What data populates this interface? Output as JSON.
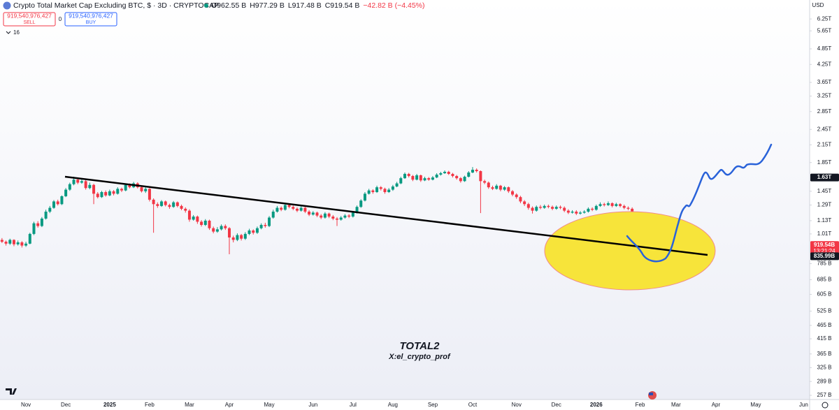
{
  "header": {
    "title": "Crypto Total Market Cap Excluding BTC, $ · 3D · CRYPTOCAP",
    "ohlc": [
      "O962.55 B",
      "H977.29 B",
      "L917.48 B",
      "C919.54 B",
      "−42.82 B (−4.45%)"
    ],
    "sell_price": "919,540,976,427",
    "sell": "SELL",
    "spread": "0",
    "buy_price": "919,540,976,427",
    "buy": "BUY",
    "indicators": "16",
    "currency": "USD"
  },
  "annotations": {
    "title": "TOTAL2",
    "author": "X:el_crypto_prof"
  },
  "chart_data": {
    "type": "candlestick",
    "log_scale": true,
    "grid": false,
    "up_color": "#089981",
    "down_color": "#f23645",
    "ylim": [
      248,
      7340
    ],
    "yticks": [
      {
        "value": 6250,
        "label": "6.25T"
      },
      {
        "value": 5650,
        "label": "5.65T"
      },
      {
        "value": 4850,
        "label": "4.85T"
      },
      {
        "value": 4250,
        "label": "4.25T"
      },
      {
        "value": 3650,
        "label": "3.65T"
      },
      {
        "value": 3250,
        "label": "3.25T"
      },
      {
        "value": 2850,
        "label": "2.85T"
      },
      {
        "value": 2450,
        "label": "2.45T"
      },
      {
        "value": 2150,
        "label": "2.15T"
      },
      {
        "value": 1850,
        "label": "1.85T"
      },
      {
        "value": 1450,
        "label": "1.45T"
      },
      {
        "value": 1290,
        "label": "1.29T"
      },
      {
        "value": 1130,
        "label": "1.13T"
      },
      {
        "value": 1010,
        "label": "1.01T"
      },
      {
        "value": 785,
        "label": "785 B"
      },
      {
        "value": 685,
        "label": "685 B"
      },
      {
        "value": 605,
        "label": "605 B"
      },
      {
        "value": 525,
        "label": "525 B"
      },
      {
        "value": 465,
        "label": "465 B"
      },
      {
        "value": 415,
        "label": "415 B"
      },
      {
        "value": 365,
        "label": "365 B"
      },
      {
        "value": 325,
        "label": "325 B"
      },
      {
        "value": 289,
        "label": "289 B"
      },
      {
        "value": 257,
        "label": "257 B"
      }
    ],
    "price_badges": [
      {
        "value": 1630,
        "label": "1.63T",
        "color": "#131722"
      },
      {
        "value": 919.54,
        "label": "919.54B",
        "timer": "13:21:24",
        "color": "#f23645"
      },
      {
        "value": 835.99,
        "label": "835.99B",
        "color": "#131722"
      }
    ],
    "categories": [
      null,
      null,
      null,
      null,
      null,
      null,
      "Nov",
      null,
      null,
      null,
      null,
      null,
      null,
      null,
      null,
      null,
      "Dec",
      null,
      null,
      null,
      null,
      null,
      null,
      null,
      null,
      null,
      null,
      "2025",
      null,
      null,
      null,
      null,
      null,
      null,
      null,
      null,
      null,
      "Feb",
      null,
      null,
      null,
      null,
      null,
      null,
      null,
      null,
      null,
      "Mar",
      null,
      null,
      null,
      null,
      null,
      null,
      null,
      null,
      null,
      "Apr",
      null,
      null,
      null,
      null,
      null,
      null,
      null,
      null,
      null,
      "May",
      null,
      null,
      null,
      null,
      null,
      null,
      null,
      null,
      null,
      null,
      "Jun",
      null,
      null,
      null,
      null,
      null,
      null,
      null,
      null,
      null,
      "Jul",
      null,
      null,
      null,
      null,
      null,
      null,
      null,
      null,
      null,
      "Aug",
      null,
      null,
      null,
      null,
      null,
      null,
      null,
      null,
      null,
      "Sep",
      null,
      null,
      null,
      null,
      null,
      null,
      null,
      null,
      null,
      "Oct",
      null,
      null,
      null,
      null,
      null,
      null,
      null,
      null,
      null,
      null,
      "Nov",
      null,
      null,
      null,
      null,
      null,
      null,
      null,
      null,
      null,
      "Dec",
      null,
      null,
      null,
      null,
      null,
      null,
      null,
      null,
      null,
      "2026",
      null,
      null,
      null,
      null,
      null,
      null,
      null,
      null,
      null,
      null,
      "Feb",
      null,
      null,
      null,
      null,
      null,
      null,
      null,
      null,
      "Mar",
      null,
      null,
      null,
      null,
      null,
      null,
      null,
      null,
      null,
      "Apr",
      null,
      null,
      null,
      null,
      null,
      null,
      null,
      null,
      null,
      "May",
      null,
      null,
      null,
      null,
      null,
      null,
      null,
      null,
      null,
      null,
      null,
      "Jun",
      null
    ],
    "open": [
      960,
      945,
      930,
      960,
      925,
      940,
      915,
      930,
      1010,
      1105,
      1080,
      1150,
      1220,
      1260,
      1330,
      1300,
      1390,
      1470,
      1540,
      1600,
      1560,
      1580,
      1490,
      1530,
      1420,
      1380,
      1440,
      1400,
      1450,
      1420,
      1480,
      1460,
      1530,
      1500,
      1550,
      1500,
      1450,
      1480,
      1350,
      1300,
      1280,
      1330,
      1290,
      1270,
      1320,
      1280,
      1250,
      1230,
      1140,
      1170,
      1120,
      1090,
      1130,
      1060,
      1030,
      1050,
      1080,
      1060,
      980,
      960,
      1000,
      970,
      1010,
      1040,
      1020,
      1060,
      1090,
      1080,
      1160,
      1220,
      1260,
      1240,
      1290,
      1270,
      1250,
      1230,
      1260,
      1220,
      1190,
      1210,
      1180,
      1160,
      1200,
      1170,
      1150,
      1140,
      1160,
      1180,
      1170,
      1210,
      1270,
      1340,
      1420,
      1460,
      1440,
      1500,
      1480,
      1440,
      1470,
      1510,
      1550,
      1620,
      1680,
      1650,
      1600,
      1660,
      1590,
      1620,
      1600,
      1630,
      1670,
      1690,
      1710,
      1680,
      1650,
      1620,
      1580,
      1640,
      1700,
      1740,
      1720,
      1580,
      1560,
      1500,
      1480,
      1520,
      1470,
      1500,
      1450,
      1410,
      1380,
      1330,
      1300,
      1260,
      1230,
      1270,
      1260,
      1280,
      1270,
      1250,
      1270,
      1260,
      1230,
      1210,
      1220,
      1200,
      1210,
      1220,
      1250,
      1240,
      1280,
      1300,
      1290,
      1310,
      1280,
      1300,
      1280,
      1260,
      1250,
      1210,
      1090,
      970,
      962.55,
      null,
      null,
      null,
      null,
      null,
      null,
      null,
      null,
      null,
      null,
      null,
      null,
      null,
      null,
      null,
      null,
      null,
      null,
      null,
      null,
      null,
      null,
      null,
      null,
      null,
      null,
      null,
      null,
      null,
      null,
      null,
      null,
      null,
      null,
      null,
      null,
      null,
      null,
      null,
      null
    ],
    "high": [
      975,
      955,
      970,
      965,
      955,
      950,
      945,
      1020,
      1120,
      1125,
      1165,
      1240,
      1280,
      1345,
      1350,
      1400,
      1490,
      1560,
      1640,
      1615,
      1610,
      1595,
      1560,
      1545,
      1440,
      1455,
      1460,
      1470,
      1465,
      1500,
      1495,
      1545,
      1550,
      1570,
      1565,
      1515,
      1500,
      1490,
      1365,
      1320,
      1345,
      1340,
      1305,
      1335,
      1330,
      1295,
      1265,
      1245,
      1185,
      1180,
      1135,
      1145,
      1140,
      1075,
      1070,
      1095,
      1095,
      1070,
      995,
      1015,
      1010,
      1025,
      1055,
      1050,
      1075,
      1105,
      1110,
      1175,
      1240,
      1280,
      1275,
      1310,
      1305,
      1285,
      1265,
      1280,
      1270,
      1235,
      1225,
      1220,
      1195,
      1215,
      1210,
      1185,
      1165,
      1175,
      1195,
      1195,
      1225,
      1285,
      1355,
      1440,
      1480,
      1475,
      1520,
      1515,
      1495,
      1490,
      1530,
      1570,
      1640,
      1700,
      1695,
      1665,
      1680,
      1670,
      1640,
      1635,
      1650,
      1690,
      1710,
      1730,
      1725,
      1695,
      1665,
      1635,
      1655,
      1720,
      1780,
      1760,
      1730,
      1600,
      1575,
      1520,
      1540,
      1530,
      1515,
      1510,
      1465,
      1425,
      1395,
      1345,
      1315,
      1275,
      1285,
      1290,
      1295,
      1295,
      1285,
      1285,
      1285,
      1275,
      1245,
      1235,
      1235,
      1225,
      1235,
      1265,
      1265,
      1295,
      1320,
      1315,
      1330,
      1320,
      1315,
      1310,
      1295,
      1275,
      1265,
      1220,
      1100,
      1000,
      977.29,
      null,
      null,
      null,
      null,
      null,
      null,
      null,
      null,
      null,
      null,
      null,
      null,
      null,
      null,
      null,
      null,
      null,
      null,
      null,
      null,
      null,
      null,
      null,
      null,
      null,
      null,
      null,
      null,
      null,
      null,
      null,
      null,
      null,
      null,
      null,
      null,
      null,
      null,
      null,
      null
    ],
    "low": [
      935,
      915,
      920,
      910,
      915,
      900,
      905,
      925,
      1000,
      1065,
      1070,
      1140,
      1205,
      1250,
      1285,
      1290,
      1380,
      1455,
      1525,
      1540,
      1545,
      1470,
      1475,
      1300,
      1365,
      1370,
      1385,
      1390,
      1400,
      1410,
      1440,
      1450,
      1485,
      1490,
      1485,
      1435,
      1430,
      1330,
      1020,
      1260,
      1270,
      1275,
      1250,
      1260,
      1265,
      1235,
      1210,
      1120,
      1130,
      1100,
      1075,
      1080,
      1045,
      1015,
      1020,
      1040,
      1045,
      850,
      940,
      950,
      955,
      960,
      1000,
      1005,
      1010,
      1050,
      1065,
      1070,
      1150,
      1210,
      1225,
      1230,
      1255,
      1235,
      1215,
      1220,
      1205,
      1175,
      1180,
      1165,
      1145,
      1150,
      1155,
      1135,
      1080,
      1130,
      1150,
      1155,
      1160,
      1200,
      1260,
      1330,
      1410,
      1420,
      1430,
      1460,
      1420,
      1430,
      1455,
      1500,
      1540,
      1610,
      1630,
      1580,
      1590,
      1570,
      1580,
      1585,
      1590,
      1620,
      1655,
      1680,
      1665,
      1630,
      1600,
      1560,
      1570,
      1630,
      1690,
      1700,
      1205,
      1540,
      1480,
      1465,
      1470,
      1450,
      1455,
      1430,
      1390,
      1360,
      1310,
      1280,
      1240,
      1200,
      1220,
      1245,
      1250,
      1255,
      1235,
      1240,
      1245,
      1215,
      1195,
      1200,
      1185,
      1190,
      1200,
      1210,
      1225,
      1230,
      1270,
      1275,
      1280,
      1265,
      1270,
      1265,
      1245,
      1235,
      1195,
      1075,
      955,
      940,
      917.48,
      null,
      null,
      null,
      null,
      null,
      null,
      null,
      null,
      null,
      null,
      null,
      null,
      null,
      null,
      null,
      null,
      null,
      null,
      null,
      null,
      null,
      null,
      null,
      null,
      null,
      null,
      null,
      null,
      null,
      null,
      null,
      null,
      null,
      null,
      null,
      null,
      null,
      null,
      null,
      null
    ],
    "close": [
      945,
      930,
      960,
      925,
      940,
      915,
      930,
      1010,
      1105,
      1080,
      1150,
      1220,
      1260,
      1330,
      1300,
      1390,
      1470,
      1540,
      1600,
      1560,
      1580,
      1490,
      1530,
      1420,
      1380,
      1440,
      1400,
      1450,
      1420,
      1480,
      1460,
      1530,
      1500,
      1550,
      1500,
      1450,
      1480,
      1350,
      1300,
      1280,
      1330,
      1290,
      1270,
      1320,
      1280,
      1250,
      1230,
      1140,
      1170,
      1120,
      1090,
      1130,
      1060,
      1030,
      1050,
      1080,
      1060,
      980,
      960,
      1000,
      970,
      1010,
      1040,
      1020,
      1060,
      1090,
      1080,
      1160,
      1220,
      1260,
      1240,
      1290,
      1270,
      1250,
      1230,
      1260,
      1220,
      1190,
      1210,
      1180,
      1160,
      1200,
      1170,
      1150,
      1140,
      1160,
      1180,
      1170,
      1210,
      1270,
      1340,
      1420,
      1460,
      1440,
      1500,
      1480,
      1440,
      1470,
      1510,
      1550,
      1620,
      1680,
      1650,
      1600,
      1660,
      1590,
      1620,
      1600,
      1630,
      1670,
      1690,
      1710,
      1680,
      1650,
      1620,
      1580,
      1640,
      1700,
      1740,
      1720,
      1580,
      1560,
      1500,
      1480,
      1520,
      1470,
      1500,
      1450,
      1410,
      1380,
      1330,
      1300,
      1260,
      1230,
      1270,
      1260,
      1280,
      1270,
      1250,
      1270,
      1260,
      1230,
      1210,
      1220,
      1200,
      1210,
      1220,
      1250,
      1240,
      1280,
      1300,
      1290,
      1310,
      1280,
      1300,
      1280,
      1260,
      1250,
      1210,
      1090,
      970,
      962.36,
      919.54,
      null,
      null,
      null,
      null,
      null,
      null,
      null,
      null,
      null,
      null,
      null,
      null,
      null,
      null,
      null,
      null,
      null,
      null,
      null,
      null,
      null,
      null,
      null,
      null,
      null,
      null,
      null,
      null,
      null,
      null,
      null,
      null,
      null,
      null,
      null,
      null,
      null,
      null,
      null,
      null
    ]
  }
}
